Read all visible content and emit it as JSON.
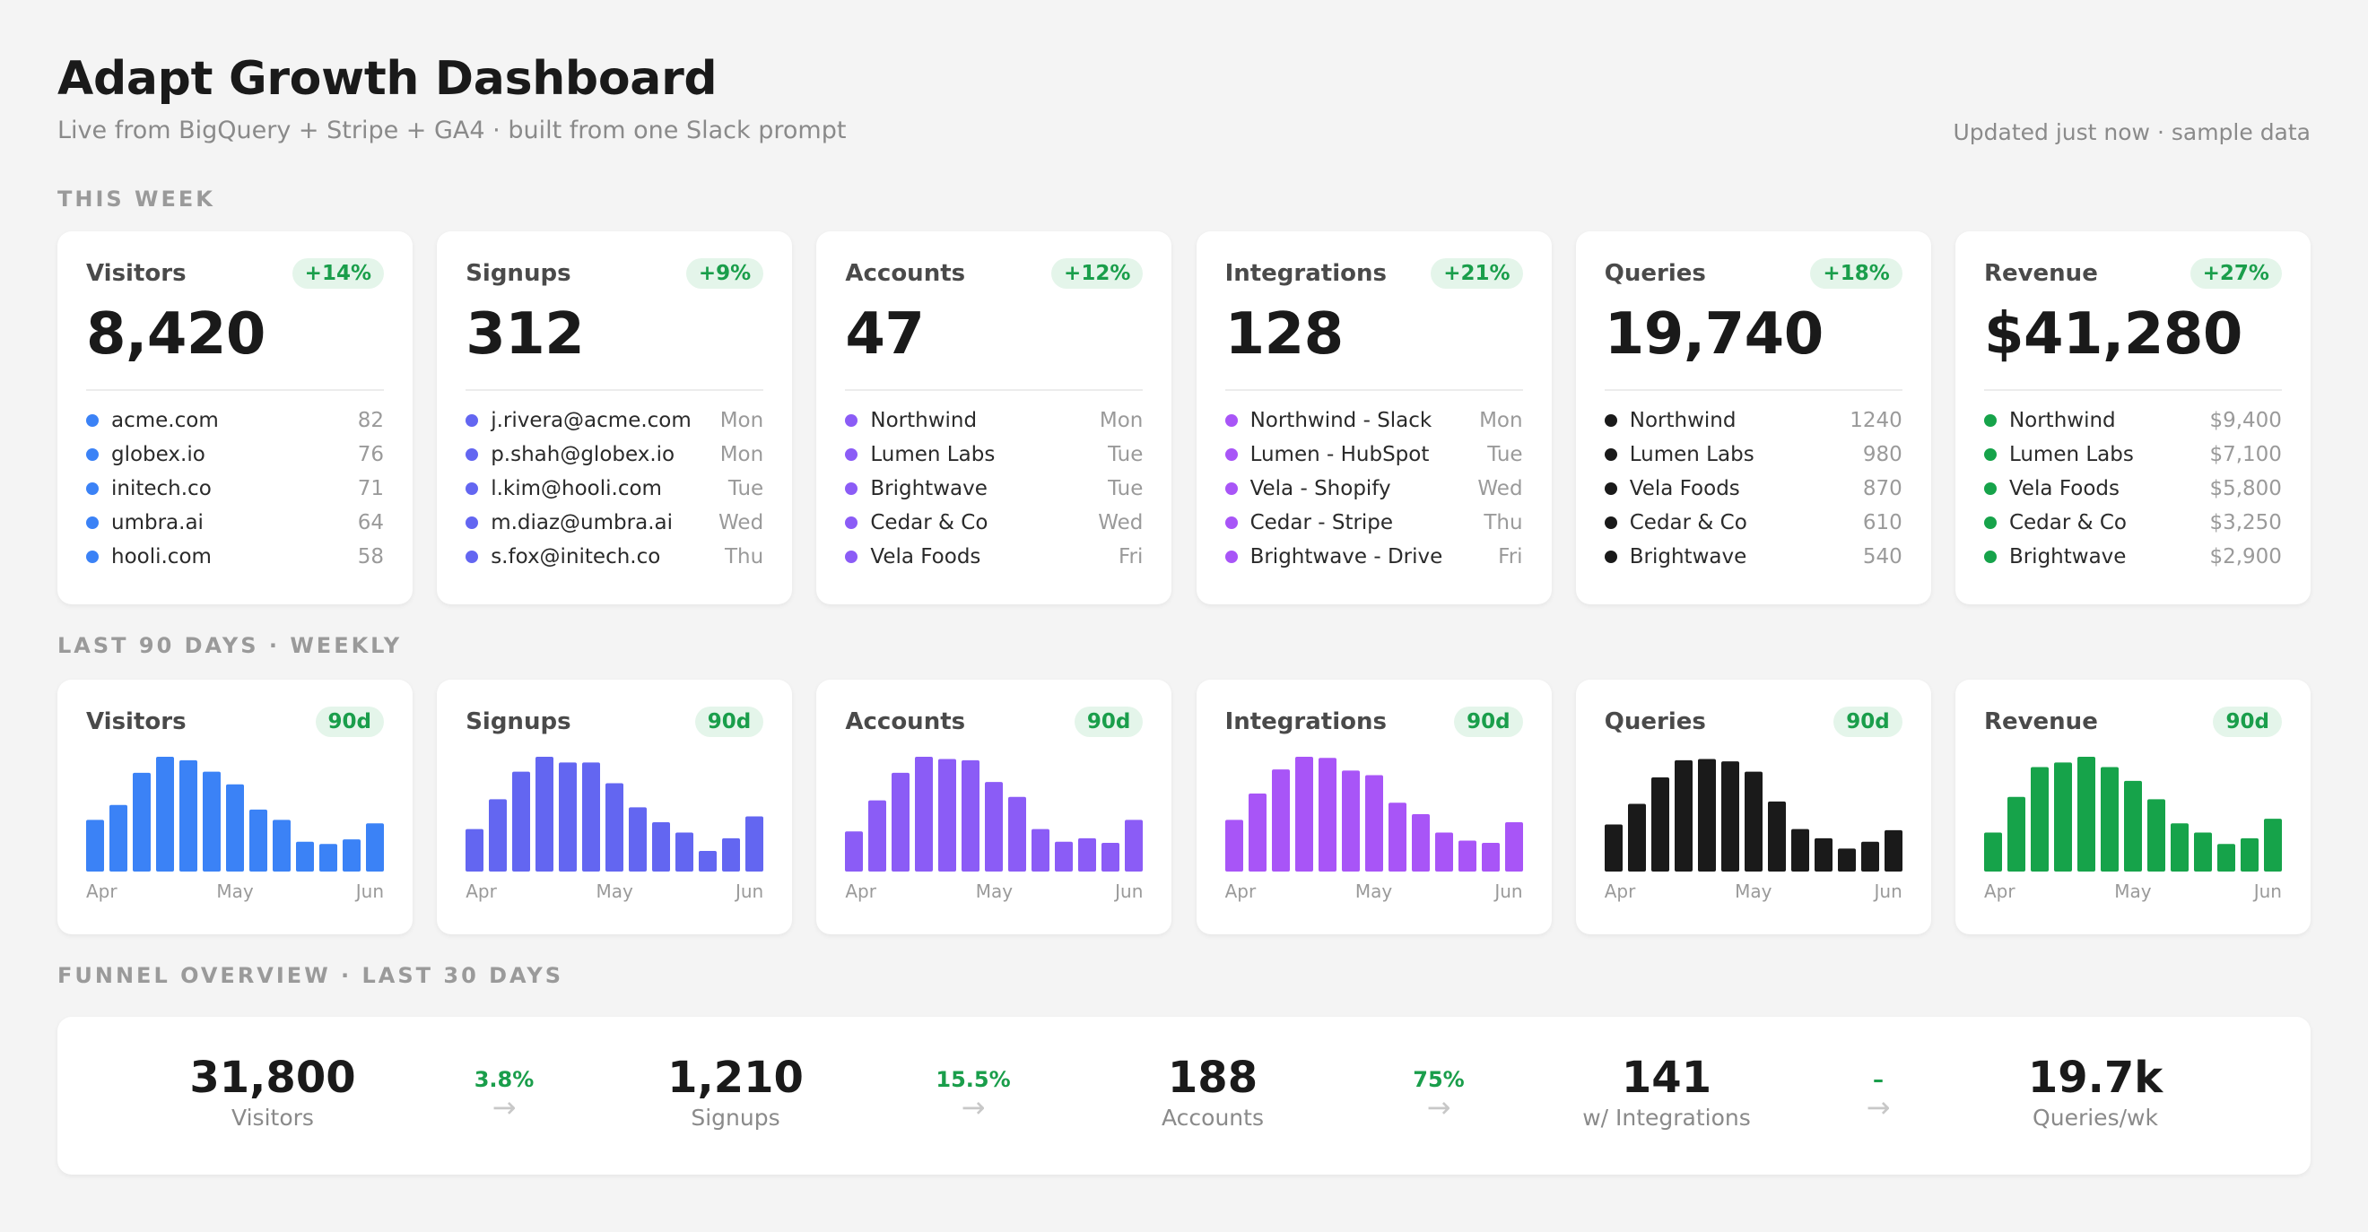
{
  "header": {
    "title": "Adapt Growth Dashboard",
    "subtitle": "Live from BigQuery + Stripe + GA4 · built from one Slack prompt",
    "updated": "Updated just now · sample data"
  },
  "sections": {
    "this_week": "THIS WEEK",
    "last_90": "LAST 90 DAYS · WEEKLY",
    "funnel": "FUNNEL OVERVIEW · LAST 30 DAYS"
  },
  "stat_cards": [
    {
      "name": "Visitors",
      "change": "+14%",
      "value": "8,420",
      "color": "#3b82f6",
      "items": [
        {
          "label": "acme.com",
          "value": "82"
        },
        {
          "label": "globex.io",
          "value": "76"
        },
        {
          "label": "initech.co",
          "value": "71"
        },
        {
          "label": "umbra.ai",
          "value": "64"
        },
        {
          "label": "hooli.com",
          "value": "58"
        }
      ]
    },
    {
      "name": "Signups",
      "change": "+9%",
      "value": "312",
      "color": "#6366f1",
      "items": [
        {
          "label": "j.rivera@acme.com",
          "value": "Mon"
        },
        {
          "label": "p.shah@globex.io",
          "value": "Mon"
        },
        {
          "label": "l.kim@hooli.com",
          "value": "Tue"
        },
        {
          "label": "m.diaz@umbra.ai",
          "value": "Wed"
        },
        {
          "label": "s.fox@initech.co",
          "value": "Thu"
        }
      ]
    },
    {
      "name": "Accounts",
      "change": "+12%",
      "value": "47",
      "color": "#8b5cf6",
      "items": [
        {
          "label": "Northwind",
          "value": "Mon"
        },
        {
          "label": "Lumen Labs",
          "value": "Tue"
        },
        {
          "label": "Brightwave",
          "value": "Tue"
        },
        {
          "label": "Cedar & Co",
          "value": "Wed"
        },
        {
          "label": "Vela Foods",
          "value": "Fri"
        }
      ]
    },
    {
      "name": "Integrations",
      "change": "+21%",
      "value": "128",
      "color": "#a855f7",
      "items": [
        {
          "label": "Northwind - Slack",
          "value": "Mon"
        },
        {
          "label": "Lumen - HubSpot",
          "value": "Tue"
        },
        {
          "label": "Vela - Shopify",
          "value": "Wed"
        },
        {
          "label": "Cedar - Stripe",
          "value": "Thu"
        },
        {
          "label": "Brightwave - Drive",
          "value": "Fri"
        }
      ]
    },
    {
      "name": "Queries",
      "change": "+18%",
      "value": "19,740",
      "color": "#1a1a1a",
      "items": [
        {
          "label": "Northwind",
          "value": "1240"
        },
        {
          "label": "Lumen Labs",
          "value": "980"
        },
        {
          "label": "Vela Foods",
          "value": "870"
        },
        {
          "label": "Cedar & Co",
          "value": "610"
        },
        {
          "label": "Brightwave",
          "value": "540"
        }
      ]
    },
    {
      "name": "Revenue",
      "change": "+27%",
      "value": "$41,280",
      "color": "#16a34a",
      "items": [
        {
          "label": "Northwind",
          "value": "$9,400"
        },
        {
          "label": "Lumen Labs",
          "value": "$7,100"
        },
        {
          "label": "Vela Foods",
          "value": "$5,800"
        },
        {
          "label": "Cedar & Co",
          "value": "$3,250"
        },
        {
          "label": "Brightwave",
          "value": "$2,900"
        }
      ]
    }
  ],
  "spark_cards": [
    {
      "name": "Visitors",
      "badge": "90d",
      "color": "#3b82f6",
      "x_labels": [
        "Apr",
        "May",
        "Jun"
      ]
    },
    {
      "name": "Signups",
      "badge": "90d",
      "color": "#6366f1",
      "x_labels": [
        "Apr",
        "May",
        "Jun"
      ]
    },
    {
      "name": "Accounts",
      "badge": "90d",
      "color": "#8b5cf6",
      "x_labels": [
        "Apr",
        "May",
        "Jun"
      ]
    },
    {
      "name": "Integrations",
      "badge": "90d",
      "color": "#a855f7",
      "x_labels": [
        "Apr",
        "May",
        "Jun"
      ]
    },
    {
      "name": "Queries",
      "badge": "90d",
      "color": "#1a1a1a",
      "x_labels": [
        "Apr",
        "May",
        "Jun"
      ]
    },
    {
      "name": "Revenue",
      "badge": "90d",
      "color": "#16a34a",
      "x_labels": [
        "Apr",
        "May",
        "Jun"
      ]
    }
  ],
  "chart_data": [
    {
      "type": "bar",
      "title": "Visitors",
      "values": [
        0.45,
        0.58,
        0.86,
        1.0,
        0.97,
        0.87,
        0.76,
        0.54,
        0.45,
        0.26,
        0.24,
        0.28,
        0.42
      ],
      "ylim": [
        0,
        1
      ]
    },
    {
      "type": "bar",
      "title": "Signups",
      "values": [
        0.37,
        0.63,
        0.87,
        1.0,
        0.95,
        0.95,
        0.77,
        0.56,
        0.43,
        0.34,
        0.18,
        0.29,
        0.48
      ],
      "ylim": [
        0,
        1
      ]
    },
    {
      "type": "bar",
      "title": "Accounts",
      "values": [
        0.35,
        0.62,
        0.86,
        1.0,
        0.98,
        0.97,
        0.78,
        0.65,
        0.37,
        0.26,
        0.29,
        0.25,
        0.45
      ],
      "ylim": [
        0,
        1
      ]
    },
    {
      "type": "bar",
      "title": "Integrations",
      "values": [
        0.45,
        0.68,
        0.89,
        1.0,
        0.99,
        0.88,
        0.84,
        0.6,
        0.5,
        0.34,
        0.27,
        0.25,
        0.43
      ],
      "ylim": [
        0,
        1
      ]
    },
    {
      "type": "bar",
      "title": "Queries",
      "values": [
        0.41,
        0.59,
        0.82,
        0.97,
        0.98,
        0.96,
        0.87,
        0.61,
        0.37,
        0.29,
        0.2,
        0.26,
        0.36
      ],
      "ylim": [
        0,
        1
      ]
    },
    {
      "type": "bar",
      "title": "Revenue",
      "values": [
        0.34,
        0.65,
        0.91,
        0.95,
        1.0,
        0.91,
        0.79,
        0.63,
        0.42,
        0.34,
        0.24,
        0.29,
        0.46
      ],
      "ylim": [
        0,
        1
      ]
    }
  ],
  "funnel": {
    "stages": [
      {
        "value": "31,800",
        "label": "Visitors"
      },
      {
        "value": "1,210",
        "label": "Signups"
      },
      {
        "value": "188",
        "label": "Accounts"
      },
      {
        "value": "141",
        "label": "w/ Integrations"
      },
      {
        "value": "19.7k",
        "label": "Queries/wk"
      }
    ],
    "conversions": [
      {
        "rate": "3.8%",
        "arrow": "→"
      },
      {
        "rate": "15.5%",
        "arrow": "→"
      },
      {
        "rate": "75%",
        "arrow": "→"
      },
      {
        "rate": "–",
        "arrow": "→"
      }
    ]
  }
}
